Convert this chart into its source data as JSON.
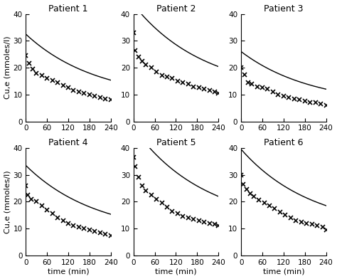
{
  "patients": [
    {
      "title": "Patient 1",
      "data_x": [
        0,
        10,
        20,
        30,
        45,
        60,
        75,
        90,
        105,
        120,
        135,
        150,
        165,
        180,
        195,
        210,
        225,
        240
      ],
      "data_y": [
        24.5,
        21.5,
        19.5,
        18.0,
        17.0,
        16.0,
        15.2,
        14.5,
        13.5,
        12.5,
        11.5,
        11.0,
        10.5,
        10.0,
        9.5,
        9.0,
        8.5,
        8.0
      ]
    },
    {
      "title": "Patient 2",
      "data_x": [
        0,
        5,
        15,
        25,
        35,
        50,
        65,
        80,
        95,
        110,
        125,
        140,
        155,
        170,
        185,
        200,
        215,
        230,
        240
      ],
      "data_y": [
        33.0,
        26.5,
        24.0,
        22.5,
        21.0,
        20.0,
        18.5,
        17.0,
        16.5,
        16.0,
        15.0,
        14.5,
        14.0,
        13.0,
        12.5,
        12.0,
        11.5,
        11.0,
        10.5
      ]
    },
    {
      "title": "Patient 3",
      "data_x": [
        0,
        10,
        20,
        30,
        45,
        60,
        75,
        90,
        105,
        120,
        135,
        150,
        165,
        180,
        195,
        210,
        225,
        240
      ],
      "data_y": [
        20.0,
        17.5,
        14.5,
        14.0,
        13.0,
        12.5,
        12.0,
        11.0,
        10.0,
        9.5,
        9.0,
        8.5,
        8.0,
        7.5,
        7.0,
        7.0,
        6.5,
        6.0
      ]
    },
    {
      "title": "Patient 4",
      "data_x": [
        0,
        5,
        15,
        30,
        45,
        60,
        75,
        90,
        105,
        120,
        135,
        150,
        165,
        180,
        195,
        210,
        225,
        240
      ],
      "data_y": [
        26.0,
        22.5,
        21.0,
        20.0,
        18.5,
        17.0,
        15.5,
        14.0,
        13.0,
        12.0,
        11.0,
        10.5,
        10.0,
        9.5,
        9.0,
        8.5,
        8.0,
        7.5
      ]
    },
    {
      "title": "Patient 5",
      "data_x": [
        0,
        5,
        15,
        25,
        35,
        50,
        65,
        80,
        95,
        110,
        125,
        140,
        155,
        170,
        185,
        200,
        215,
        230,
        240
      ],
      "data_y": [
        36.5,
        33.0,
        29.0,
        26.0,
        24.0,
        22.5,
        21.0,
        19.5,
        18.0,
        16.5,
        15.5,
        14.5,
        14.0,
        13.5,
        13.0,
        12.5,
        12.0,
        11.5,
        11.0
      ]
    },
    {
      "title": "Patient 6",
      "data_x": [
        0,
        5,
        15,
        25,
        35,
        50,
        65,
        80,
        95,
        110,
        125,
        140,
        155,
        170,
        185,
        200,
        215,
        230,
        240
      ],
      "data_y": [
        30.0,
        26.5,
        24.5,
        23.0,
        22.0,
        20.5,
        19.5,
        18.5,
        17.5,
        16.0,
        15.0,
        14.0,
        13.0,
        12.5,
        12.0,
        11.5,
        11.0,
        10.5,
        9.5
      ]
    }
  ],
  "ylabel": "Cu,e (mmoles/l)",
  "xlabel_bottom": "time (min)",
  "xlim": [
    0,
    240
  ],
  "ylim": [
    0,
    40
  ],
  "xticks": [
    0,
    60,
    120,
    180,
    240
  ],
  "yticks": [
    0,
    10,
    20,
    30,
    40
  ],
  "bg_color": "#ffffff",
  "line_color": "#000000",
  "marker": "x",
  "markersize": 4,
  "markeredgewidth": 1.2,
  "linewidth": 1.0,
  "title_fontsize": 9,
  "label_fontsize": 8,
  "tick_fontsize": 7.5
}
